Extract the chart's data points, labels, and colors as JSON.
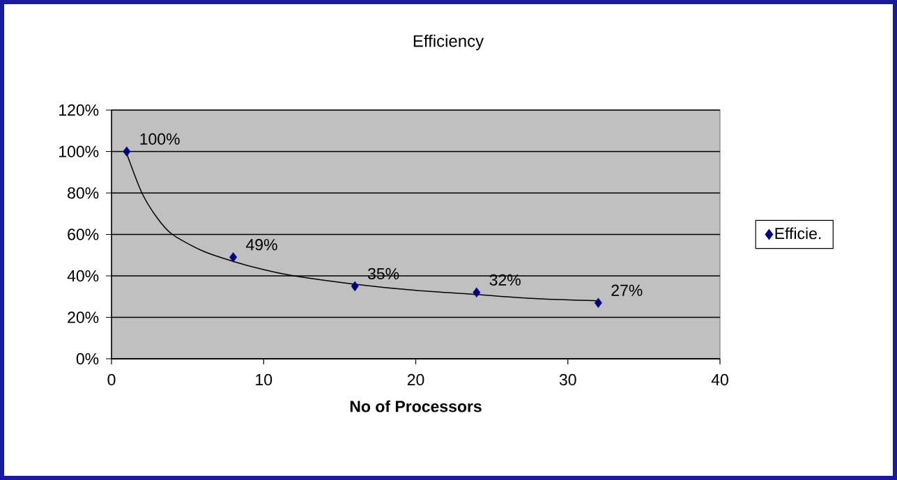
{
  "chart_data": {
    "type": "scatter",
    "title": "Efficiency",
    "xlabel": "No of Processors",
    "xlim": [
      0,
      40
    ],
    "xticks": [
      0,
      10,
      20,
      30,
      40
    ],
    "ylim": [
      0,
      120
    ],
    "yticks": [
      {
        "value": 0,
        "label": "0%"
      },
      {
        "value": 20,
        "label": "20%"
      },
      {
        "value": 40,
        "label": "40%"
      },
      {
        "value": 60,
        "label": "60%"
      },
      {
        "value": 80,
        "label": "80%"
      },
      {
        "value": 100,
        "label": "100%"
      },
      {
        "value": 120,
        "label": "120%"
      }
    ],
    "grid": "y",
    "legend": "right",
    "series": [
      {
        "name": "Efficie.",
        "color": "#000080",
        "marker": "diamond",
        "x": [
          1,
          8,
          16,
          24,
          32
        ],
        "values": [
          100,
          49,
          35,
          32,
          27
        ],
        "value_labels": [
          "100%",
          "49%",
          "35%",
          "32%",
          "27%"
        ]
      },
      {
        "type": "line",
        "color": "#000000",
        "x": [
          1,
          2,
          3,
          4,
          6,
          8,
          10,
          12,
          16,
          20,
          24,
          28,
          32
        ],
        "values": [
          99,
          80,
          68,
          60,
          52,
          47,
          43,
          40,
          36,
          33,
          31,
          29,
          28
        ]
      }
    ]
  }
}
